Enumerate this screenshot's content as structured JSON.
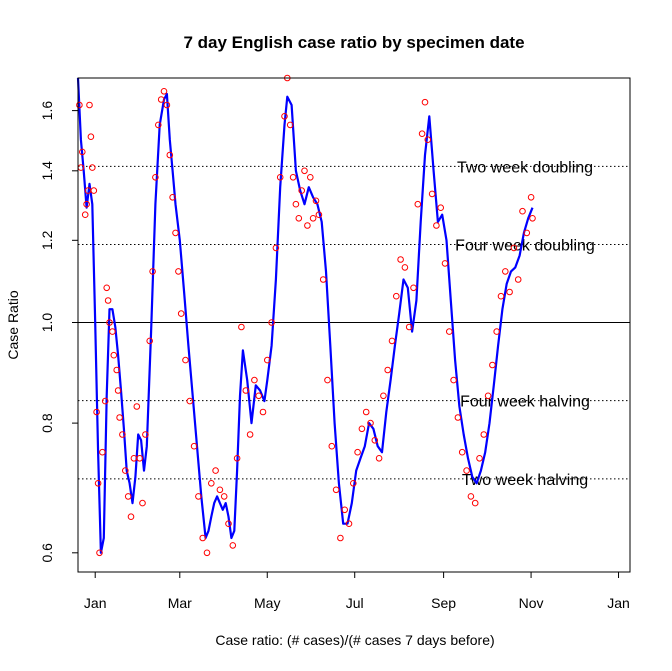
{
  "chart_data": {
    "type": "line",
    "title": "7 day English case ratio by specimen date",
    "xlabel": "Case ratio: (# cases)/(# cases 7 days before)",
    "ylabel": "Case Ratio",
    "y_scale": "log",
    "ylim": [
      0.575,
      1.72
    ],
    "xlim": [
      "2020-12-20",
      "2022-01-09"
    ],
    "x_ticks": [
      {
        "date": "2021-01-01",
        "label": "Jan"
      },
      {
        "date": "2021-03-01",
        "label": "Mar"
      },
      {
        "date": "2021-05-01",
        "label": "May"
      },
      {
        "date": "2021-07-01",
        "label": "Jul"
      },
      {
        "date": "2021-09-01",
        "label": "Sep"
      },
      {
        "date": "2021-11-01",
        "label": "Nov"
      },
      {
        "date": "2022-01-01",
        "label": "Jan"
      }
    ],
    "y_ticks": [
      0.6,
      0.8,
      1.0,
      1.2,
      1.4,
      1.6
    ],
    "y_tick_labels": [
      "0.6",
      "0.8",
      "1.0",
      "1.2",
      "1.4",
      "1.6"
    ],
    "reference_lines": [
      {
        "value": 1.414,
        "label": "Two week doubling",
        "style": "dotted"
      },
      {
        "value": 1.189,
        "label": "Four week doubling",
        "style": "dotted"
      },
      {
        "value": 1.0,
        "label": "",
        "style": "solid"
      },
      {
        "value": 0.841,
        "label": "Four week halving",
        "style": "dotted"
      },
      {
        "value": 0.707,
        "label": "Two week halving",
        "style": "dotted"
      }
    ],
    "series": [
      {
        "type": "line",
        "color": "#0000ff",
        "points": [
          [
            "2020-12-20",
            1.72
          ],
          [
            "2020-12-22",
            1.5
          ],
          [
            "2020-12-24",
            1.4
          ],
          [
            "2020-12-26",
            1.29
          ],
          [
            "2020-12-28",
            1.36
          ],
          [
            "2020-12-30",
            1.3
          ],
          [
            "2021-01-01",
            1.0
          ],
          [
            "2021-01-03",
            0.75
          ],
          [
            "2021-01-05",
            0.6
          ],
          [
            "2021-01-07",
            0.62
          ],
          [
            "2021-01-09",
            0.85
          ],
          [
            "2021-01-11",
            1.03
          ],
          [
            "2021-01-13",
            1.03
          ],
          [
            "2021-01-15",
            0.99
          ],
          [
            "2021-01-17",
            0.93
          ],
          [
            "2021-01-19",
            0.86
          ],
          [
            "2021-01-21",
            0.79
          ],
          [
            "2021-01-23",
            0.72
          ],
          [
            "2021-01-25",
            0.7
          ],
          [
            "2021-01-27",
            0.67
          ],
          [
            "2021-01-29",
            0.71
          ],
          [
            "2021-01-31",
            0.78
          ],
          [
            "2021-02-02",
            0.77
          ],
          [
            "2021-02-04",
            0.72
          ],
          [
            "2021-02-06",
            0.76
          ],
          [
            "2021-02-09",
            0.98
          ],
          [
            "2021-02-12",
            1.3
          ],
          [
            "2021-02-15",
            1.55
          ],
          [
            "2021-02-18",
            1.64
          ],
          [
            "2021-02-20",
            1.66
          ],
          [
            "2021-02-22",
            1.5
          ],
          [
            "2021-02-24",
            1.4
          ],
          [
            "2021-02-26",
            1.3
          ],
          [
            "2021-03-01",
            1.2
          ],
          [
            "2021-03-04",
            1.07
          ],
          [
            "2021-03-07",
            0.95
          ],
          [
            "2021-03-10",
            0.85
          ],
          [
            "2021-03-13",
            0.76
          ],
          [
            "2021-03-16",
            0.68
          ],
          [
            "2021-03-19",
            0.62
          ],
          [
            "2021-03-21",
            0.63
          ],
          [
            "2021-03-23",
            0.65
          ],
          [
            "2021-03-25",
            0.67
          ],
          [
            "2021-03-27",
            0.68
          ],
          [
            "2021-03-29",
            0.67
          ],
          [
            "2021-03-31",
            0.66
          ],
          [
            "2021-04-02",
            0.67
          ],
          [
            "2021-04-04",
            0.65
          ],
          [
            "2021-04-06",
            0.62
          ],
          [
            "2021-04-08",
            0.63
          ],
          [
            "2021-04-10",
            0.72
          ],
          [
            "2021-04-12",
            0.85
          ],
          [
            "2021-04-14",
            0.94
          ],
          [
            "2021-04-17",
            0.88
          ],
          [
            "2021-04-20",
            0.8
          ],
          [
            "2021-04-23",
            0.87
          ],
          [
            "2021-04-26",
            0.86
          ],
          [
            "2021-04-29",
            0.84
          ],
          [
            "2021-05-01",
            0.88
          ],
          [
            "2021-05-04",
            0.95
          ],
          [
            "2021-05-07",
            1.1
          ],
          [
            "2021-05-10",
            1.35
          ],
          [
            "2021-05-13",
            1.55
          ],
          [
            "2021-05-15",
            1.65
          ],
          [
            "2021-05-18",
            1.62
          ],
          [
            "2021-05-21",
            1.4
          ],
          [
            "2021-05-24",
            1.34
          ],
          [
            "2021-05-27",
            1.3
          ],
          [
            "2021-05-30",
            1.35
          ],
          [
            "2021-06-02",
            1.32
          ],
          [
            "2021-06-05",
            1.3
          ],
          [
            "2021-06-08",
            1.25
          ],
          [
            "2021-06-11",
            1.12
          ],
          [
            "2021-06-14",
            0.95
          ],
          [
            "2021-06-17",
            0.8
          ],
          [
            "2021-06-20",
            0.7
          ],
          [
            "2021-06-23",
            0.64
          ],
          [
            "2021-06-26",
            0.64
          ],
          [
            "2021-06-29",
            0.67
          ],
          [
            "2021-07-02",
            0.72
          ],
          [
            "2021-07-05",
            0.74
          ],
          [
            "2021-07-08",
            0.76
          ],
          [
            "2021-07-11",
            0.8
          ],
          [
            "2021-07-14",
            0.79
          ],
          [
            "2021-07-17",
            0.76
          ],
          [
            "2021-07-20",
            0.75
          ],
          [
            "2021-07-23",
            0.82
          ],
          [
            "2021-07-26",
            0.88
          ],
          [
            "2021-07-29",
            0.95
          ],
          [
            "2021-08-01",
            1.02
          ],
          [
            "2021-08-04",
            1.1
          ],
          [
            "2021-08-07",
            1.08
          ],
          [
            "2021-08-10",
            0.98
          ],
          [
            "2021-08-13",
            1.05
          ],
          [
            "2021-08-16",
            1.25
          ],
          [
            "2021-08-19",
            1.45
          ],
          [
            "2021-08-22",
            1.58
          ],
          [
            "2021-08-25",
            1.4
          ],
          [
            "2021-08-28",
            1.25
          ],
          [
            "2021-08-31",
            1.27
          ],
          [
            "2021-09-03",
            1.2
          ],
          [
            "2021-09-06",
            1.05
          ],
          [
            "2021-09-09",
            0.92
          ],
          [
            "2021-09-12",
            0.83
          ],
          [
            "2021-09-15",
            0.78
          ],
          [
            "2021-09-18",
            0.74
          ],
          [
            "2021-09-21",
            0.71
          ],
          [
            "2021-09-24",
            0.7
          ],
          [
            "2021-09-27",
            0.72
          ],
          [
            "2021-09-30",
            0.75
          ],
          [
            "2021-10-03",
            0.8
          ],
          [
            "2021-10-06",
            0.87
          ],
          [
            "2021-10-09",
            0.95
          ],
          [
            "2021-10-12",
            1.03
          ],
          [
            "2021-10-15",
            1.09
          ],
          [
            "2021-10-18",
            1.12
          ],
          [
            "2021-10-21",
            1.13
          ],
          [
            "2021-10-24",
            1.16
          ],
          [
            "2021-10-27",
            1.22
          ],
          [
            "2021-10-30",
            1.26
          ],
          [
            "2021-11-02",
            1.29
          ]
        ]
      },
      {
        "type": "scatter",
        "color": "#ff0000",
        "points": [
          [
            "2020-12-21",
            1.62
          ],
          [
            "2020-12-22",
            1.41
          ],
          [
            "2020-12-23",
            1.46
          ],
          [
            "2020-12-25",
            1.27
          ],
          [
            "2020-12-26",
            1.3
          ],
          [
            "2020-12-27",
            1.34
          ],
          [
            "2020-12-28",
            1.62
          ],
          [
            "2020-12-29",
            1.51
          ],
          [
            "2020-12-30",
            1.41
          ],
          [
            "2020-12-31",
            1.34
          ],
          [
            "2021-01-02",
            0.82
          ],
          [
            "2021-01-03",
            0.7
          ],
          [
            "2021-01-04",
            0.6
          ],
          [
            "2021-01-06",
            0.75
          ],
          [
            "2021-01-08",
            0.84
          ],
          [
            "2021-01-09",
            1.08
          ],
          [
            "2021-01-10",
            1.05
          ],
          [
            "2021-01-11",
            1.0
          ],
          [
            "2021-01-13",
            0.98
          ],
          [
            "2021-01-14",
            0.93
          ],
          [
            "2021-01-16",
            0.9
          ],
          [
            "2021-01-17",
            0.86
          ],
          [
            "2021-01-18",
            0.81
          ],
          [
            "2021-01-20",
            0.78
          ],
          [
            "2021-01-22",
            0.72
          ],
          [
            "2021-01-24",
            0.68
          ],
          [
            "2021-01-26",
            0.65
          ],
          [
            "2021-01-28",
            0.74
          ],
          [
            "2021-01-30",
            0.83
          ],
          [
            "2021-02-01",
            0.74
          ],
          [
            "2021-02-03",
            0.67
          ],
          [
            "2021-02-05",
            0.78
          ],
          [
            "2021-02-08",
            0.96
          ],
          [
            "2021-02-10",
            1.12
          ],
          [
            "2021-02-12",
            1.38
          ],
          [
            "2021-02-14",
            1.55
          ],
          [
            "2021-02-16",
            1.64
          ],
          [
            "2021-02-18",
            1.67
          ],
          [
            "2021-02-20",
            1.62
          ],
          [
            "2021-02-22",
            1.45
          ],
          [
            "2021-02-24",
            1.32
          ],
          [
            "2021-02-26",
            1.22
          ],
          [
            "2021-02-28",
            1.12
          ],
          [
            "2021-03-02",
            1.02
          ],
          [
            "2021-03-05",
            0.92
          ],
          [
            "2021-03-08",
            0.84
          ],
          [
            "2021-03-11",
            0.76
          ],
          [
            "2021-03-14",
            0.68
          ],
          [
            "2021-03-17",
            0.62
          ],
          [
            "2021-03-20",
            0.6
          ],
          [
            "2021-03-23",
            0.7
          ],
          [
            "2021-03-26",
            0.72
          ],
          [
            "2021-03-29",
            0.69
          ],
          [
            "2021-04-01",
            0.68
          ],
          [
            "2021-04-04",
            0.64
          ],
          [
            "2021-04-07",
            0.61
          ],
          [
            "2021-04-10",
            0.74
          ],
          [
            "2021-04-13",
            0.99
          ],
          [
            "2021-04-16",
            0.86
          ],
          [
            "2021-04-19",
            0.78
          ],
          [
            "2021-04-22",
            0.88
          ],
          [
            "2021-04-25",
            0.85
          ],
          [
            "2021-04-28",
            0.82
          ],
          [
            "2021-05-01",
            0.92
          ],
          [
            "2021-05-04",
            1.0
          ],
          [
            "2021-05-07",
            1.18
          ],
          [
            "2021-05-10",
            1.38
          ],
          [
            "2021-05-13",
            1.58
          ],
          [
            "2021-05-15",
            1.72
          ],
          [
            "2021-05-17",
            1.55
          ],
          [
            "2021-05-19",
            1.38
          ],
          [
            "2021-05-21",
            1.3
          ],
          [
            "2021-05-23",
            1.26
          ],
          [
            "2021-05-25",
            1.34
          ],
          [
            "2021-05-27",
            1.4
          ],
          [
            "2021-05-29",
            1.24
          ],
          [
            "2021-05-31",
            1.38
          ],
          [
            "2021-06-02",
            1.26
          ],
          [
            "2021-06-04",
            1.31
          ],
          [
            "2021-06-06",
            1.27
          ],
          [
            "2021-06-09",
            1.1
          ],
          [
            "2021-06-12",
            0.88
          ],
          [
            "2021-06-15",
            0.76
          ],
          [
            "2021-06-18",
            0.69
          ],
          [
            "2021-06-21",
            0.62
          ],
          [
            "2021-06-24",
            0.66
          ],
          [
            "2021-06-27",
            0.64
          ],
          [
            "2021-06-30",
            0.7
          ],
          [
            "2021-07-03",
            0.75
          ],
          [
            "2021-07-06",
            0.79
          ],
          [
            "2021-07-09",
            0.82
          ],
          [
            "2021-07-12",
            0.8
          ],
          [
            "2021-07-15",
            0.77
          ],
          [
            "2021-07-18",
            0.74
          ],
          [
            "2021-07-21",
            0.85
          ],
          [
            "2021-07-24",
            0.9
          ],
          [
            "2021-07-27",
            0.96
          ],
          [
            "2021-07-30",
            1.06
          ],
          [
            "2021-08-02",
            1.15
          ],
          [
            "2021-08-05",
            1.13
          ],
          [
            "2021-08-08",
            0.99
          ],
          [
            "2021-08-11",
            1.08
          ],
          [
            "2021-08-14",
            1.3
          ],
          [
            "2021-08-17",
            1.52
          ],
          [
            "2021-08-19",
            1.63
          ],
          [
            "2021-08-21",
            1.5
          ],
          [
            "2021-08-24",
            1.33
          ],
          [
            "2021-08-27",
            1.24
          ],
          [
            "2021-08-30",
            1.29
          ],
          [
            "2021-09-02",
            1.14
          ],
          [
            "2021-09-05",
            0.98
          ],
          [
            "2021-09-08",
            0.88
          ],
          [
            "2021-09-11",
            0.81
          ],
          [
            "2021-09-14",
            0.75
          ],
          [
            "2021-09-17",
            0.72
          ],
          [
            "2021-09-20",
            0.68
          ],
          [
            "2021-09-23",
            0.67
          ],
          [
            "2021-09-26",
            0.74
          ],
          [
            "2021-09-29",
            0.78
          ],
          [
            "2021-10-02",
            0.85
          ],
          [
            "2021-10-05",
            0.91
          ],
          [
            "2021-10-08",
            0.98
          ],
          [
            "2021-10-11",
            1.06
          ],
          [
            "2021-10-14",
            1.12
          ],
          [
            "2021-10-17",
            1.07
          ],
          [
            "2021-10-20",
            1.18
          ],
          [
            "2021-10-23",
            1.1
          ],
          [
            "2021-10-26",
            1.28
          ],
          [
            "2021-10-29",
            1.22
          ],
          [
            "2021-11-01",
            1.32
          ],
          [
            "2021-11-02",
            1.26
          ]
        ]
      }
    ]
  }
}
